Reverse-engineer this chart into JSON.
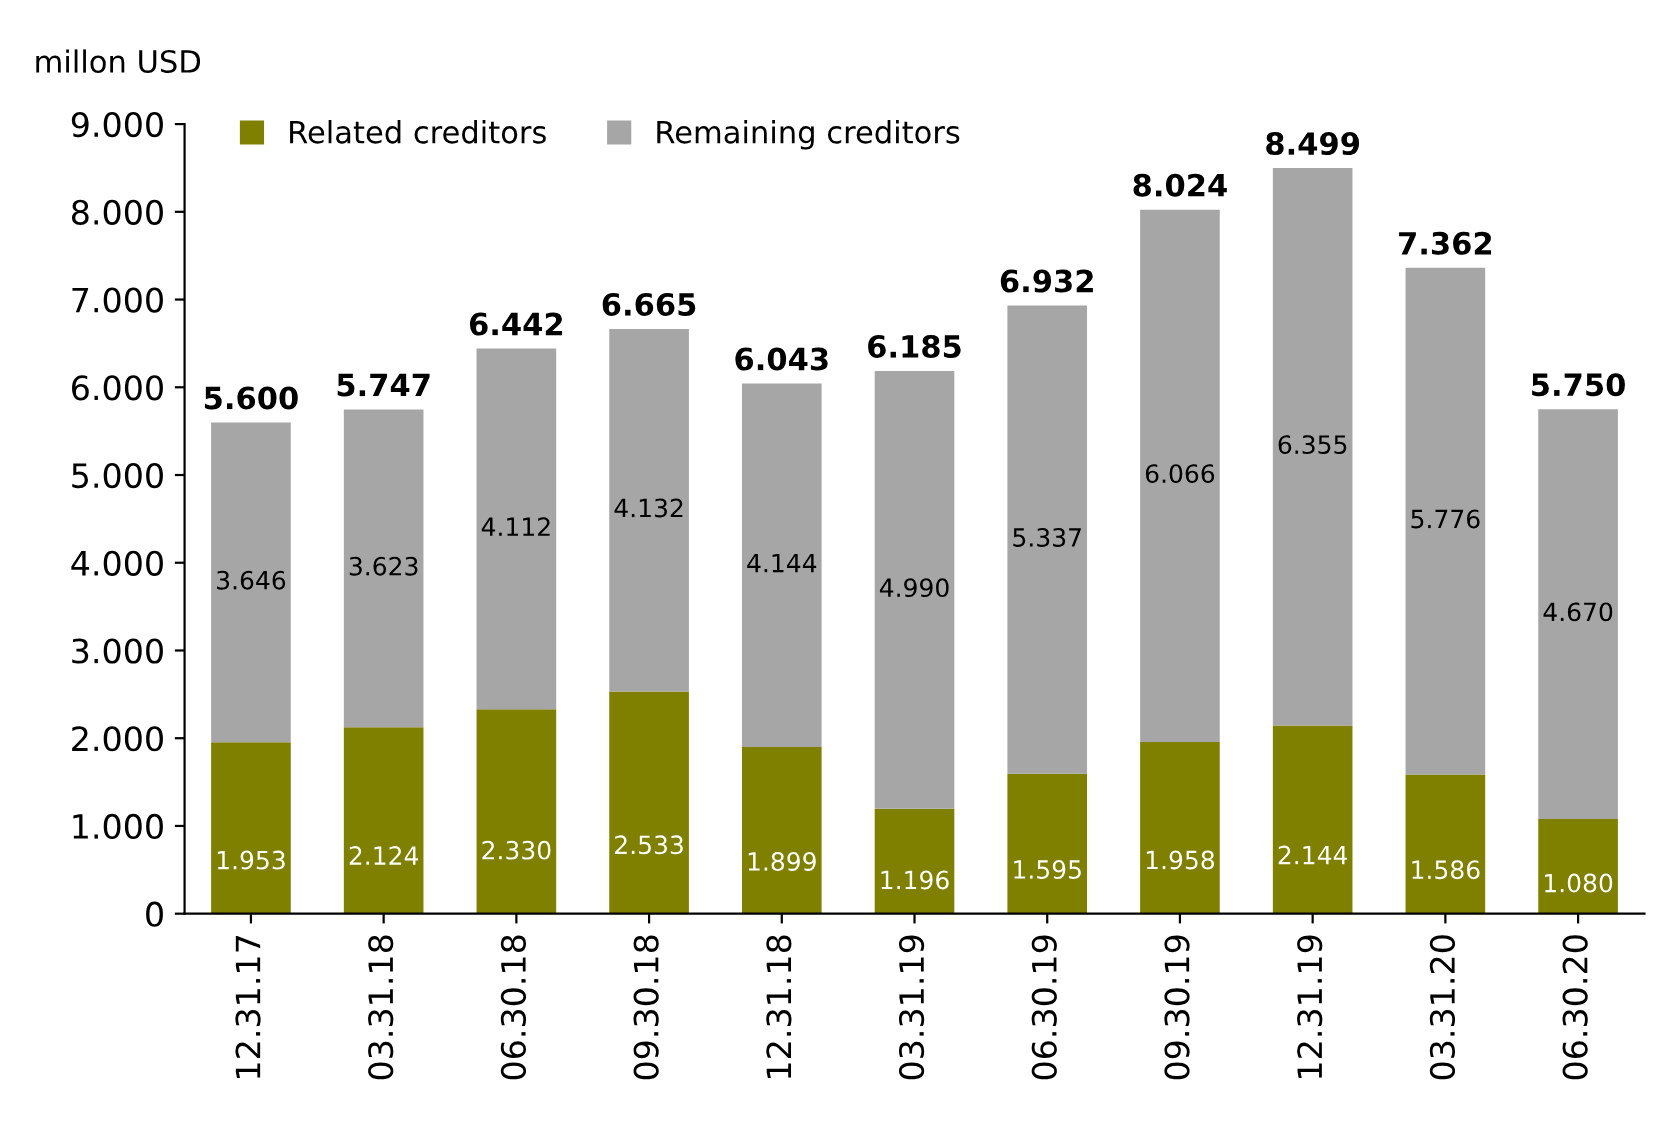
{
  "chart_data": {
    "type": "bar",
    "stacked": true,
    "ylabel": "millon USD",
    "categories": [
      "12.31.17",
      "03.31.18",
      "06.30.18",
      "09.30.18",
      "12.31.18",
      "03.31.19",
      "06.30.19",
      "09.30.19",
      "12.31.19",
      "03.31.20",
      "06.30.20"
    ],
    "series": [
      {
        "name": "Related creditors",
        "color": "#7f7f00",
        "values": [
          1953,
          2124,
          2330,
          2533,
          1899,
          1196,
          1595,
          1958,
          2144,
          1586,
          1080
        ],
        "value_labels": [
          "1.953",
          "2.124",
          "2.330",
          "2.533",
          "1.899",
          "1.196",
          "1.595",
          "1.958",
          "2.144",
          "1.586",
          "1.080"
        ]
      },
      {
        "name": "Remaining creditors",
        "color": "#a6a6a6",
        "values": [
          3646,
          3623,
          4112,
          4132,
          4144,
          4990,
          5337,
          6066,
          6355,
          5776,
          4670
        ],
        "value_labels": [
          "3.646",
          "3.623",
          "4.112",
          "4.132",
          "4.144",
          "4.990",
          "5.337",
          "6.066",
          "6.355",
          "5.776",
          "4.670"
        ]
      }
    ],
    "totals": [
      "5.600",
      "5.747",
      "6.442",
      "6.665",
      "6.043",
      "6.185",
      "6.932",
      "8.024",
      "8.499",
      "7.362",
      "5.750"
    ],
    "ylim": [
      0,
      9000
    ],
    "yticks": [
      0,
      {
        "value": 1000,
        "label": "1.000"
      },
      {
        "value": 2000,
        "label": "2.000"
      },
      {
        "value": 3000,
        "label": "3.000"
      },
      {
        "value": 4000,
        "label": "4.000"
      },
      {
        "value": 5000,
        "label": "5.000"
      },
      {
        "value": 6000,
        "label": "6.000"
      },
      {
        "value": 7000,
        "label": "7.000"
      },
      {
        "value": 8000,
        "label": "8.000"
      },
      {
        "value": 9000,
        "label": "9.000"
      }
    ],
    "grid": false,
    "legend": "top left"
  }
}
